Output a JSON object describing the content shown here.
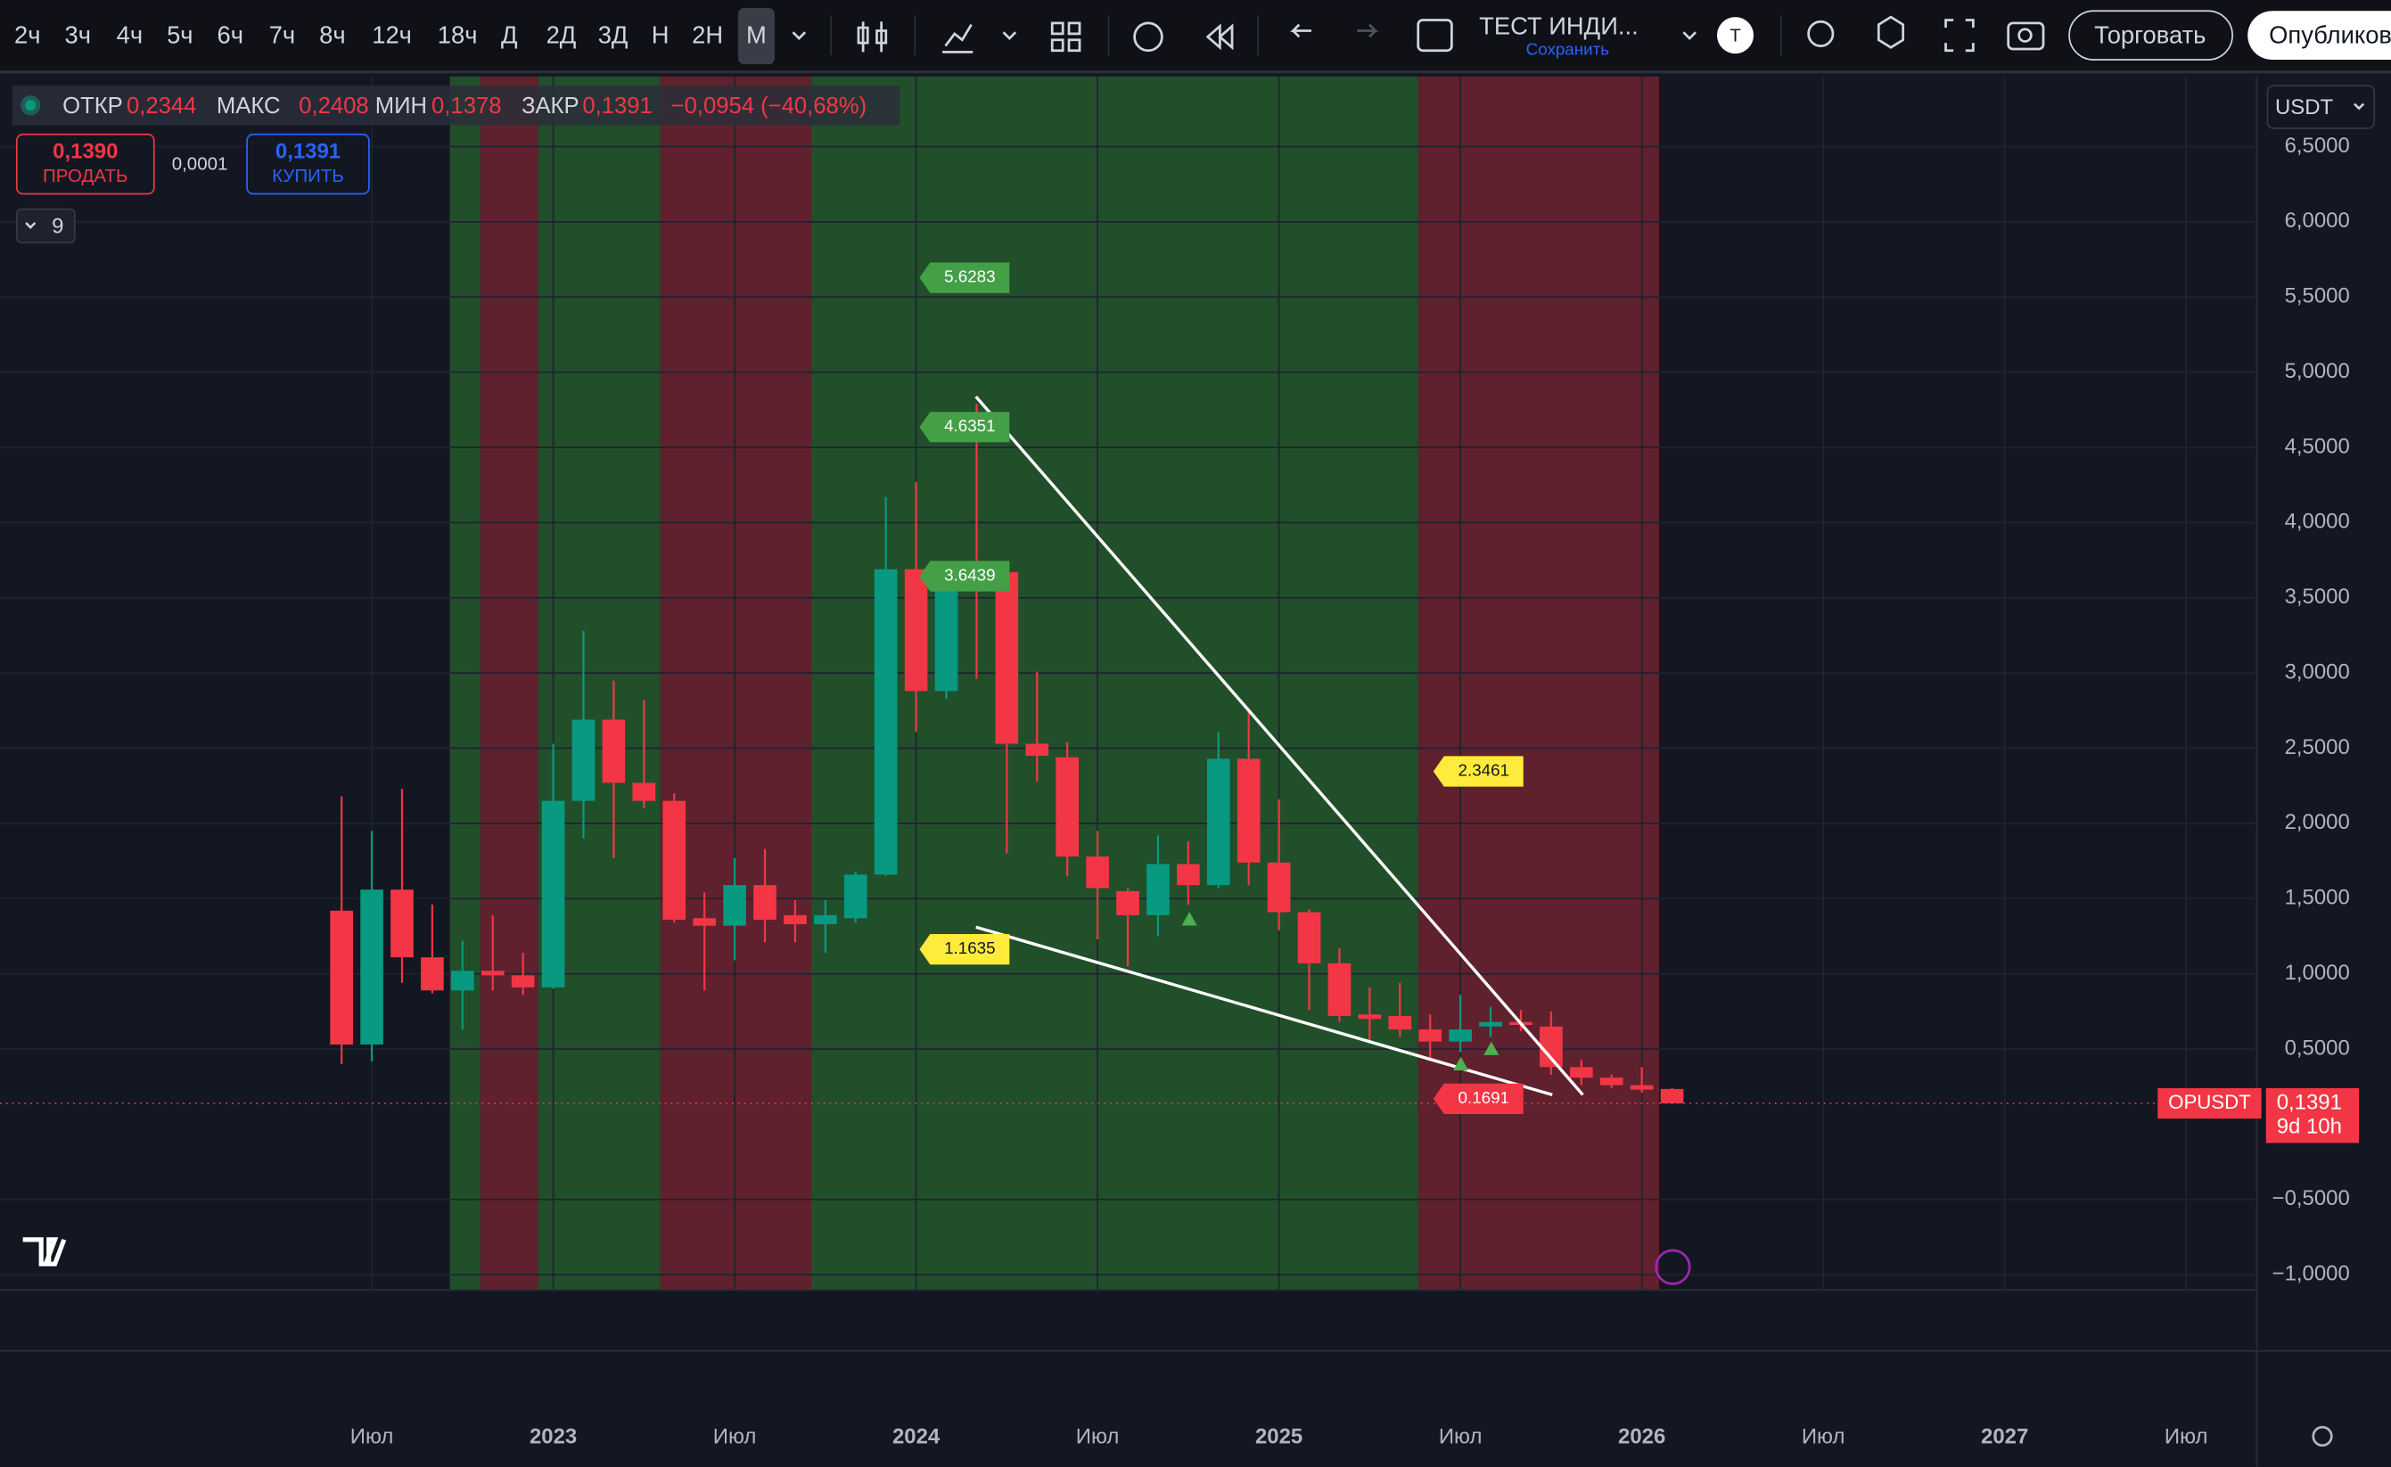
{
  "toolbar": {
    "intervals": [
      "2ч",
      "3ч",
      "4ч",
      "5ч",
      "6ч",
      "7ч",
      "8ч",
      "12ч",
      "18ч",
      "Д",
      "2Д",
      "3Д",
      "Н",
      "2Н",
      "М"
    ],
    "layout_name": "ТЕСТ ИНДИ...",
    "save": "Сохранить",
    "avatar": "Т",
    "trade": "Торговать",
    "publish": "Опубликов"
  },
  "legend": {
    "open_label": "ОТКР",
    "open": "0,2344",
    "high_label": "МАКС",
    "high": "0,2408",
    "low_label": "МИН",
    "low": "0,1378",
    "close_label": "ЗАКР",
    "close": "0,1391",
    "change": "−0,0954 (−40,68%)"
  },
  "trade_panel": {
    "sell_price": "0,1390",
    "sell": "ПРОДАТЬ",
    "spread": "0,0001",
    "buy_price": "0,1391",
    "buy": "КУПИТЬ",
    "indicators_count": "9"
  },
  "currency": "USDT",
  "price_label": {
    "symbol": "OPUSDT",
    "price": "0,1391",
    "countdown": "9d 10h"
  },
  "chart_data": {
    "type": "candlestick",
    "x": [
      "2022-06",
      "2022-07",
      "2022-08",
      "2022-09",
      "2022-10",
      "2022-11",
      "2022-12",
      "2023-01",
      "2023-02",
      "2023-03",
      "2023-04",
      "2023-05",
      "2023-06",
      "2023-07",
      "2023-08",
      "2023-09",
      "2023-10",
      "2023-11",
      "2023-12",
      "2024-01",
      "2024-02",
      "2024-03",
      "2024-04",
      "2024-05",
      "2024-06",
      "2024-07",
      "2024-08",
      "2024-09",
      "2024-10",
      "2024-11",
      "2024-12",
      "2025-01",
      "2025-02",
      "2025-03",
      "2025-04",
      "2025-05",
      "2025-06",
      "2025-07",
      "2025-08",
      "2025-09",
      "2025-10",
      "2025-11",
      "2025-12",
      "2026-01",
      "2026-02"
    ],
    "open": [
      1.42,
      0.53,
      1.56,
      1.11,
      0.89,
      1.02,
      0.99,
      0.91,
      2.15,
      2.69,
      2.27,
      2.15,
      1.37,
      1.32,
      1.59,
      1.39,
      1.33,
      1.37,
      1.66,
      3.69,
      2.88,
      3.69,
      3.67,
      2.53,
      2.44,
      1.78,
      1.55,
      1.39,
      1.73,
      1.59,
      2.43,
      1.74,
      1.41,
      1.07,
      0.73,
      0.72,
      0.63,
      0.55,
      0.65,
      0.68,
      0.65,
      0.38,
      0.31,
      0.26,
      0.2344
    ],
    "high": [
      2.18,
      1.95,
      2.23,
      1.46,
      1.22,
      1.39,
      1.14,
      2.53,
      3.28,
      2.95,
      2.82,
      2.2,
      1.54,
      1.77,
      1.83,
      1.49,
      1.49,
      1.68,
      4.17,
      4.27,
      3.72,
      4.79,
      3.67,
      3.01,
      2.54,
      1.95,
      1.57,
      1.92,
      1.88,
      2.61,
      2.76,
      2.16,
      1.43,
      1.17,
      0.91,
      0.94,
      0.73,
      0.86,
      0.78,
      0.76,
      0.75,
      0.43,
      0.33,
      0.38,
      0.2408
    ],
    "low": [
      0.4,
      0.42,
      0.94,
      0.87,
      0.63,
      0.89,
      0.86,
      0.9,
      1.9,
      1.77,
      2.1,
      1.34,
      0.89,
      1.09,
      1.21,
      1.21,
      1.14,
      1.34,
      1.65,
      2.61,
      2.83,
      2.96,
      1.8,
      2.28,
      1.65,
      1.23,
      1.05,
      1.25,
      1.46,
      1.57,
      1.59,
      1.29,
      0.76,
      0.68,
      0.54,
      0.58,
      0.43,
      0.48,
      0.58,
      0.62,
      0.33,
      0.26,
      0.24,
      0.21,
      0.1378
    ],
    "close": [
      0.53,
      1.56,
      1.11,
      0.89,
      1.02,
      0.99,
      0.91,
      2.15,
      2.69,
      2.27,
      2.15,
      1.36,
      1.32,
      1.59,
      1.36,
      1.33,
      1.39,
      1.66,
      3.69,
      2.88,
      3.69,
      3.67,
      2.53,
      2.45,
      1.78,
      1.57,
      1.39,
      1.73,
      1.59,
      2.43,
      1.74,
      1.41,
      1.07,
      0.72,
      0.7,
      0.63,
      0.55,
      0.63,
      0.68,
      0.66,
      0.38,
      0.31,
      0.26,
      0.23,
      0.1391
    ],
    "up_color": "#089981",
    "down_color": "#f23645",
    "current_price": 0.1391,
    "ylim": [
      -1,
      6.5
    ],
    "yticks": [
      {
        "value": -1,
        "label": "−1,0000"
      },
      {
        "value": -0.5,
        "label": "−0,5000"
      },
      {
        "value": 0.5,
        "label": "0,5000"
      },
      {
        "value": 1,
        "label": "1,0000"
      },
      {
        "value": 1.5,
        "label": "1,5000"
      },
      {
        "value": 2,
        "label": "2,0000"
      },
      {
        "value": 2.5,
        "label": "2,5000"
      },
      {
        "value": 3,
        "label": "3,0000"
      },
      {
        "value": 3.5,
        "label": "3,5000"
      },
      {
        "value": 4,
        "label": "4,0000"
      },
      {
        "value": 4.5,
        "label": "4,5000"
      },
      {
        "value": 5,
        "label": "5,0000"
      },
      {
        "value": 5.5,
        "label": "5,5000"
      },
      {
        "value": 6,
        "label": "6,0000"
      },
      {
        "value": 6.5,
        "label": "6,5000"
      }
    ],
    "xticks": [
      {
        "value": "2022-07",
        "label": "Июл"
      },
      {
        "value": "2023-01",
        "label": "2023"
      },
      {
        "value": "2023-07",
        "label": "Июл"
      },
      {
        "value": "2024-01",
        "label": "2024"
      },
      {
        "value": "2024-07",
        "label": "Июл"
      },
      {
        "value": "2025-01",
        "label": "2025"
      },
      {
        "value": "2025-07",
        "label": "Июл"
      },
      {
        "value": "2026-01",
        "label": "2026"
      },
      {
        "value": "2026-07",
        "label": "Июл"
      },
      {
        "value": "2027-01",
        "label": "2027"
      },
      {
        "value": "2027-07",
        "label": "Июл"
      }
    ],
    "grid": true,
    "annotations": [
      {
        "value": 5.6283,
        "color": "#43a047"
      },
      {
        "value": 4.6351,
        "color": "#43a047"
      },
      {
        "value": 3.6439,
        "color": "#43a047"
      },
      {
        "value": 1.1635,
        "color": "#ffeb3b"
      },
      {
        "value": 2.3461,
        "color": "#ffeb3b"
      },
      {
        "value": 0.1691,
        "color": "#f23645"
      }
    ]
  }
}
